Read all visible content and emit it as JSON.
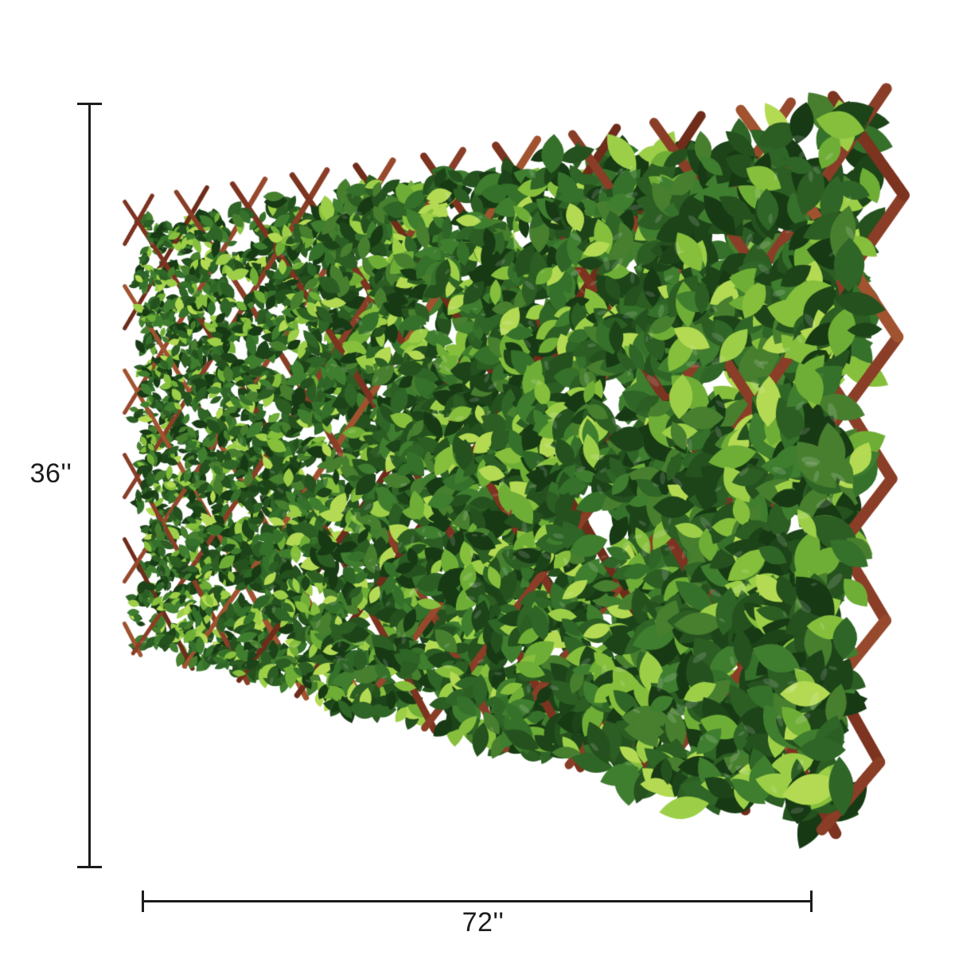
{
  "image": {
    "alt": "Expandable brown wood lattice trellis fence covered with artificial green leaves, shown at an angle on a white background"
  },
  "annotations": {
    "height_label": "36''",
    "width_label": "72''"
  },
  "art": {
    "background": "#ffffff",
    "dimension_line_color": "#1c1c1c",
    "label_color": "#1c1c1c",
    "wood_colors": [
      "#8a3e27",
      "#97492d",
      "#7c3320",
      "#a1532f",
      "#6f2c1a"
    ],
    "leaf_dark_colors": [
      "#1d4419",
      "#25511e",
      "#2c5d23",
      "#173a14"
    ],
    "leaf_mid_colors": [
      "#35712a",
      "#3f7e2f",
      "#2f6526",
      "#477f2f"
    ],
    "leaf_light_colors": [
      "#6fae36",
      "#86bf3c",
      "#9ccf47",
      "#b3da52"
    ]
  }
}
